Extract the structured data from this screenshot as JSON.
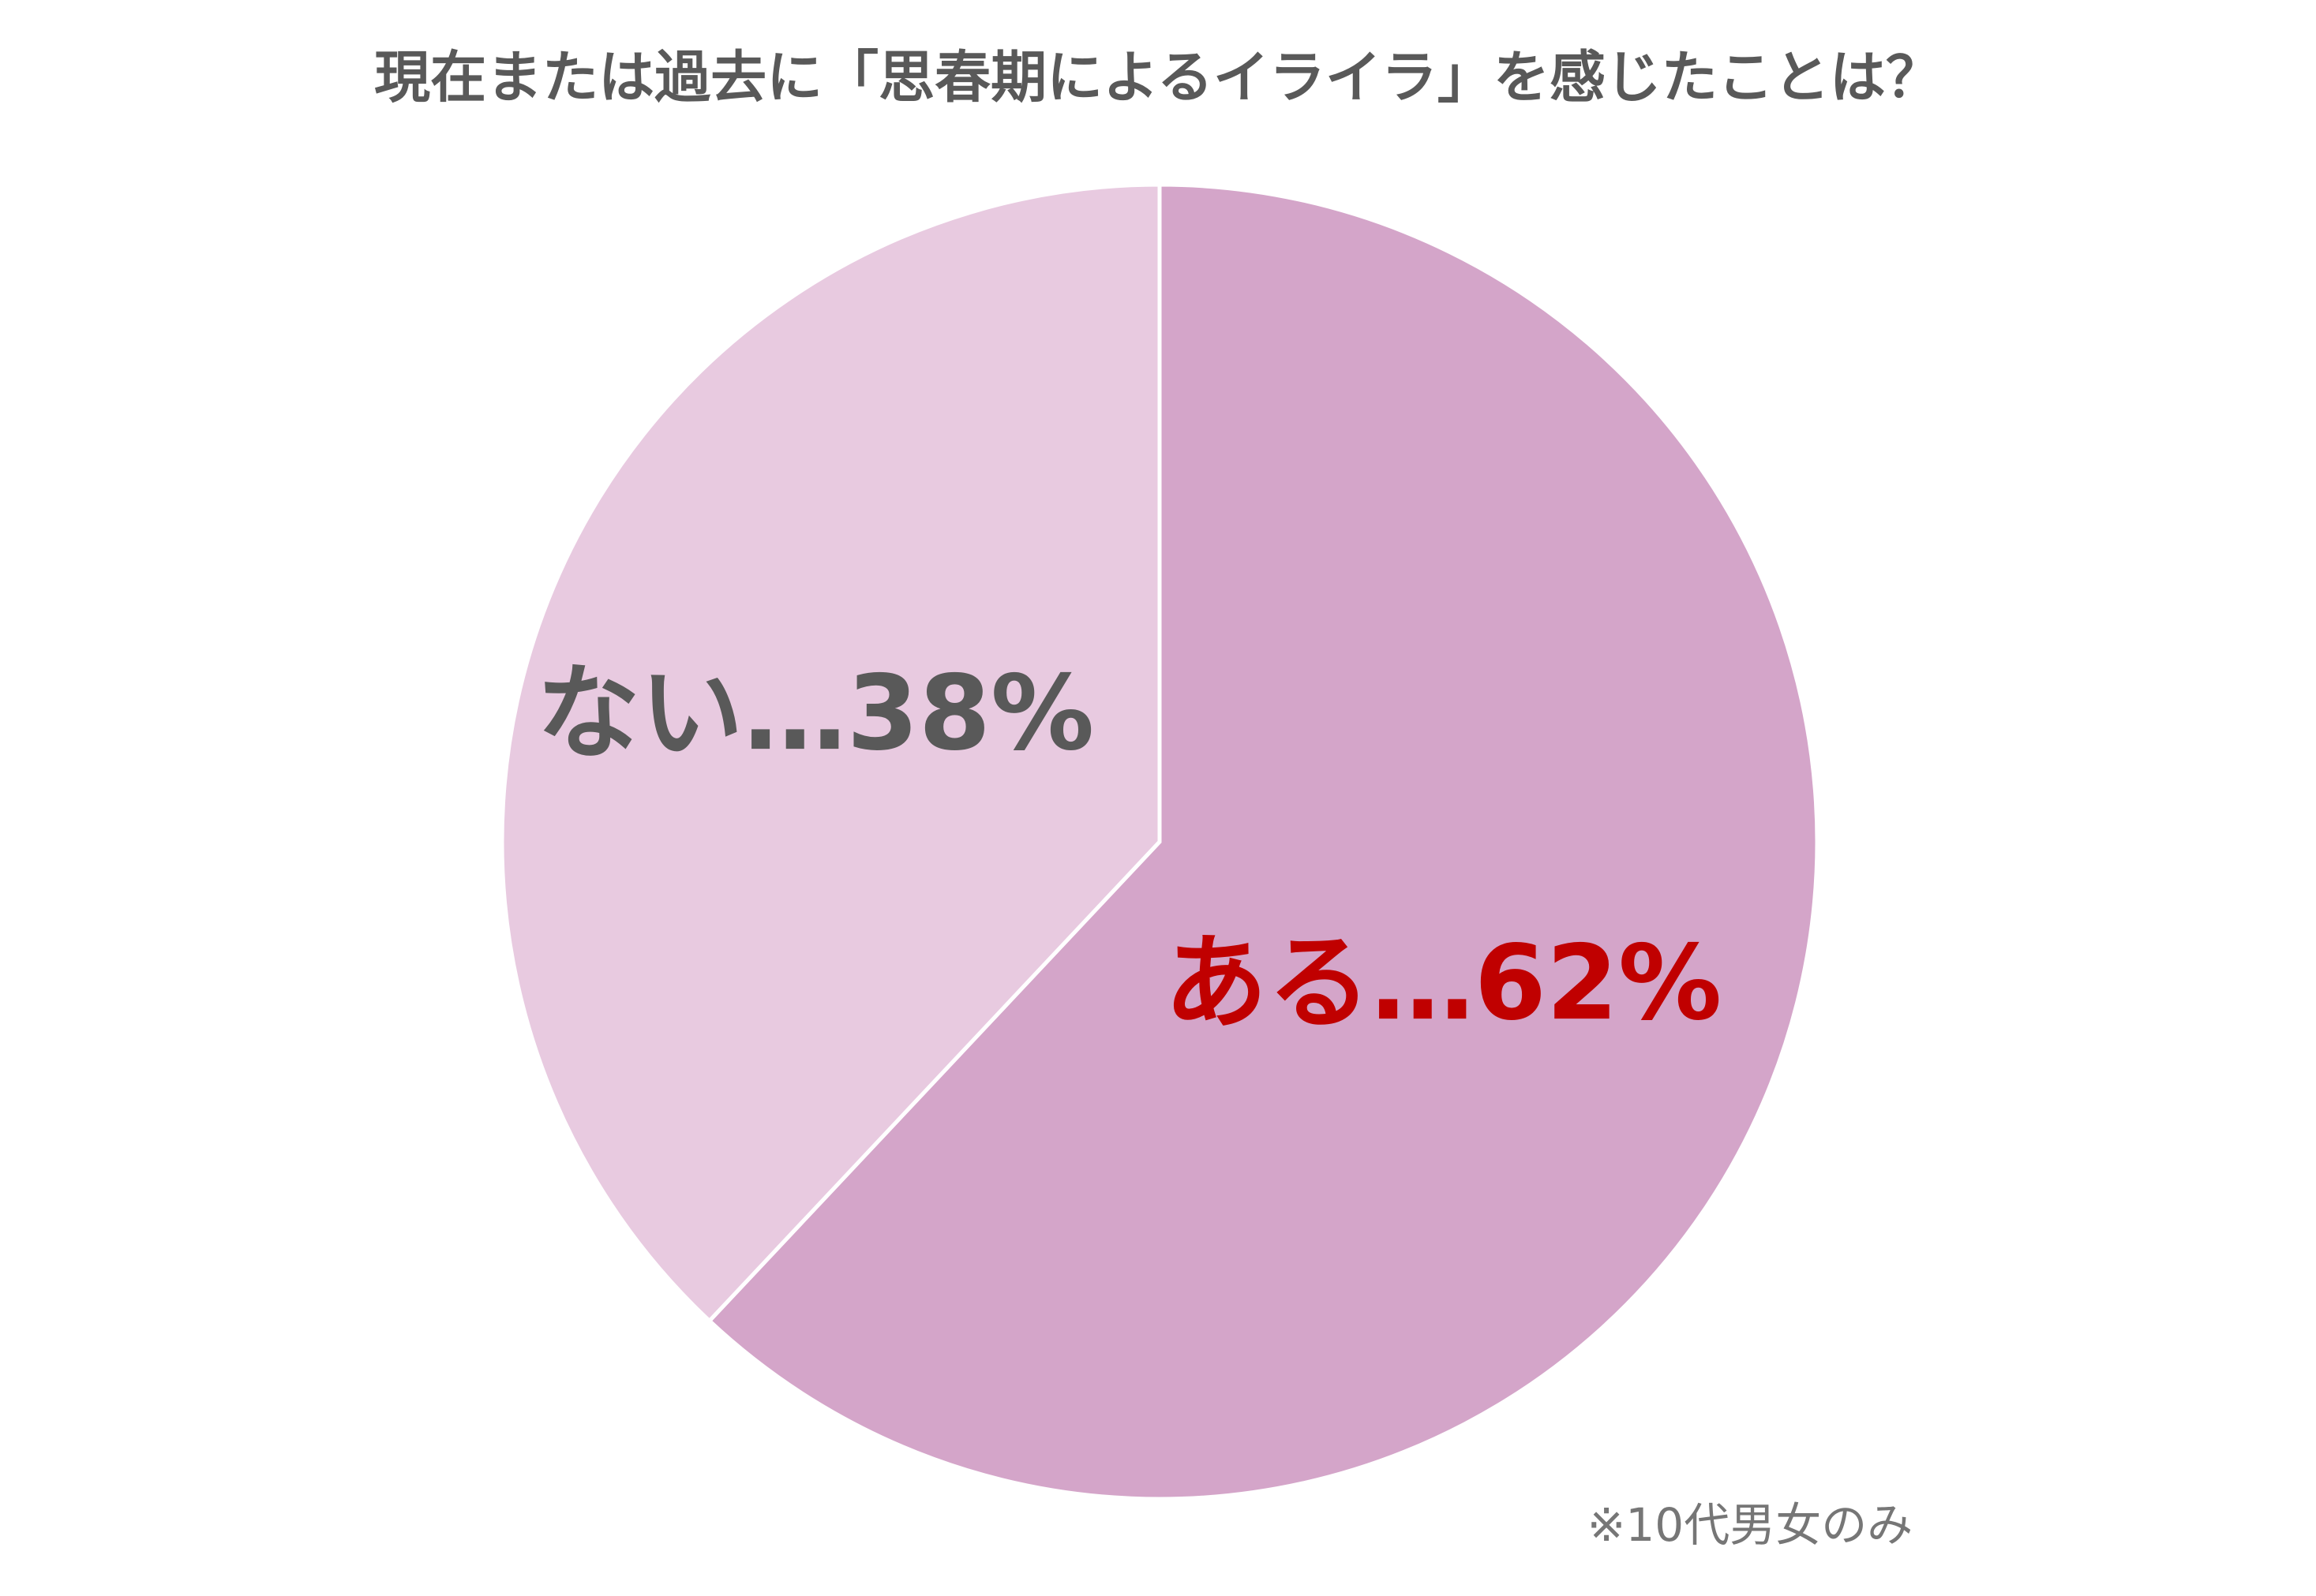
{
  "chart_data": {
    "type": "pie",
    "title": "現在または過去に「思春期によるイライラ」を感じたことは？",
    "values": [
      62,
      38
    ],
    "value_labels": [
      "ある…62%",
      "ない…38%"
    ],
    "colors": [
      "#d4a5c9",
      "#e8cae0"
    ],
    "label_colors": [
      "#c00000",
      "#595959"
    ],
    "note": "※10代男女のみ"
  }
}
